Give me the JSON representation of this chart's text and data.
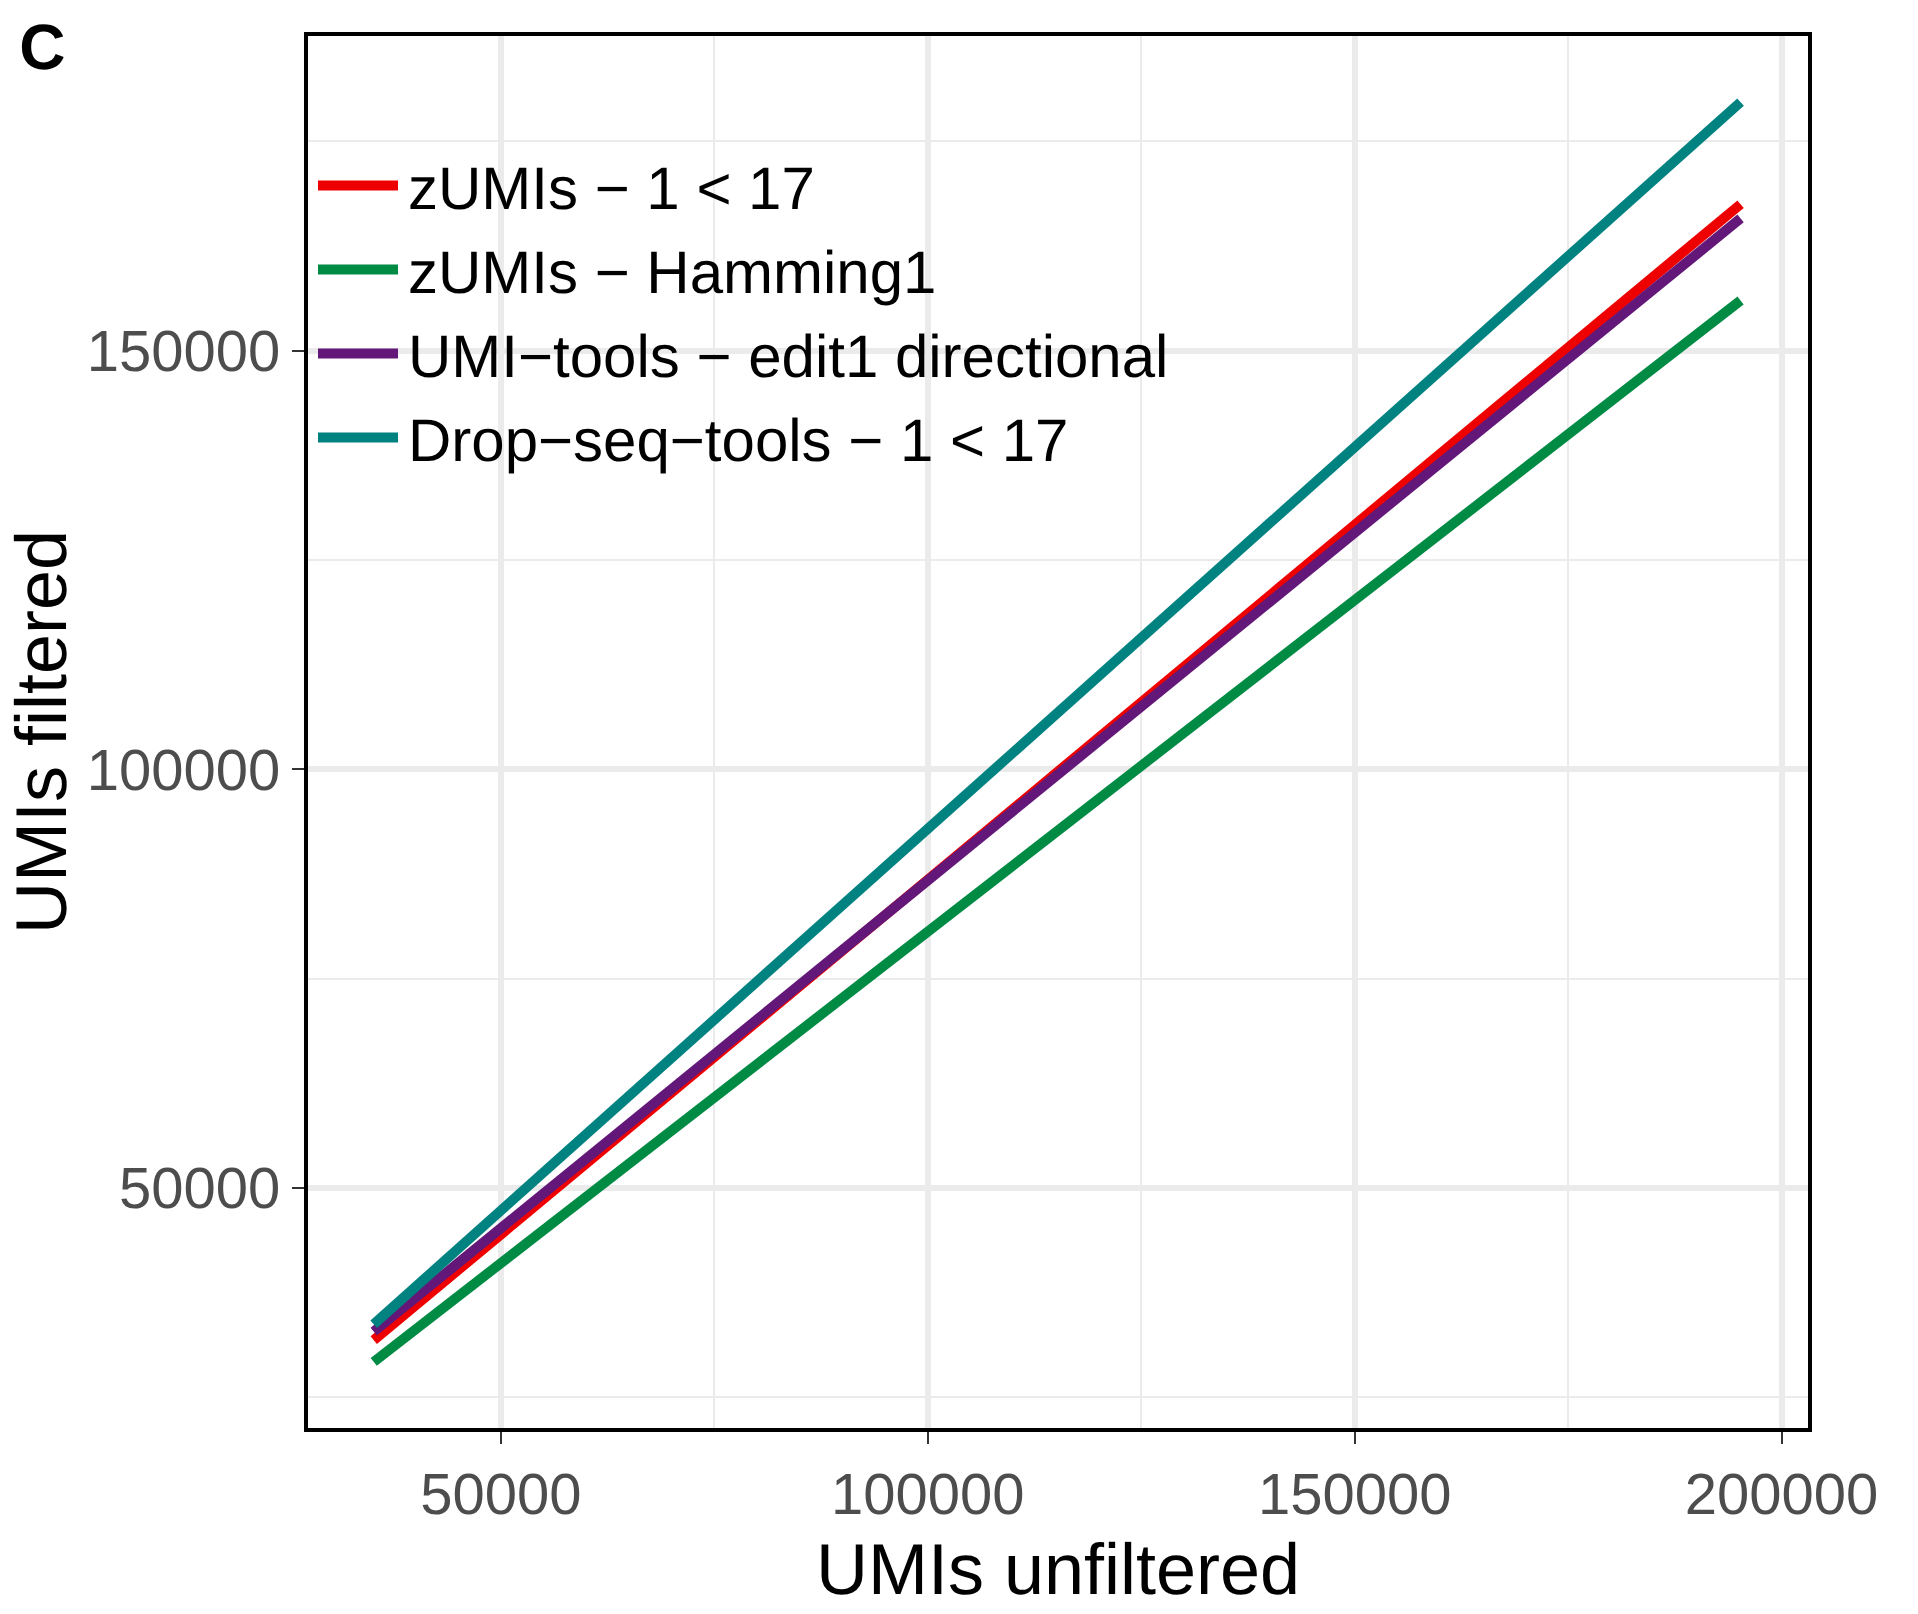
{
  "chart_data": {
    "type": "line",
    "title": "C",
    "xlabel": "UMIs unfiltered",
    "ylabel": "UMIs filtered",
    "x": [
      35100,
      195200
    ],
    "series": [
      {
        "name": "zUMIs − 1 < 17",
        "color": "#ee0000",
        "values": [
          31800,
          167500
        ]
      },
      {
        "name": "zUMIs − Hamming1",
        "color": "#008b45",
        "values": [
          29200,
          156000
        ]
      },
      {
        "name": "UMI−tools − edit1 directional",
        "color": "#631879",
        "values": [
          32800,
          165800
        ]
      },
      {
        "name": "Drop−seq−tools − 1 < 17",
        "color": "#008280",
        "values": [
          33700,
          179700
        ]
      }
    ],
    "xlim": [
      27400,
      203100
    ],
    "xticks": [
      50000,
      100000,
      150000,
      200000
    ],
    "ylim": [
      21300,
      187600
    ],
    "yticks": [
      50000,
      100000,
      150000
    ],
    "grid": true,
    "legend": "top left",
    "marker": "none",
    "line_style": "solid"
  }
}
